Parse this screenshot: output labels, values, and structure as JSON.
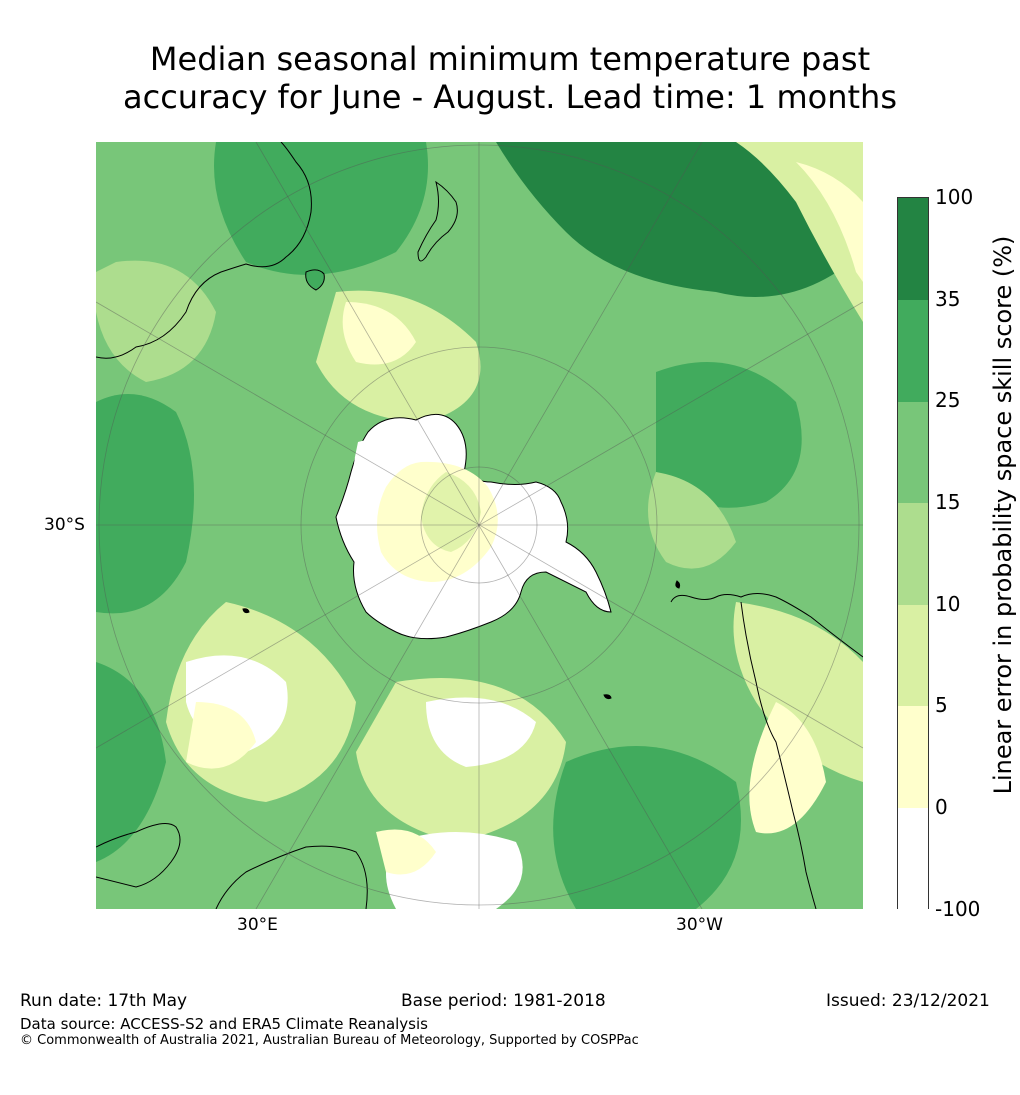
{
  "title_line1": "Median seasonal minimum temperature past",
  "title_line2": "accuracy for June - August. Lead time: 1 months",
  "map": {
    "projection": "south-polar-stereographic",
    "lat_label": "30°S",
    "lon_labels": [
      "30°E",
      "30°W"
    ]
  },
  "colorbar": {
    "label": "Linear error in probability space skill score (%)",
    "ticks": [
      "100",
      "35",
      "25",
      "15",
      "10",
      "5",
      "0",
      "-100"
    ],
    "bins": [
      {
        "range": "-100 to 0",
        "color": "#ffffff"
      },
      {
        "range": "0 to 5",
        "color": "#ffffcc"
      },
      {
        "range": "5 to 10",
        "color": "#d9f0a3"
      },
      {
        "range": "10 to 15",
        "color": "#addd8e"
      },
      {
        "range": "15 to 25",
        "color": "#78c679"
      },
      {
        "range": "25 to 35",
        "color": "#41ab5d"
      },
      {
        "range": "35 to 100",
        "color": "#238443"
      }
    ]
  },
  "footer": {
    "run_date": "Run date: 17th May",
    "base_period": "Base period: 1981-2018",
    "issued": "Issued: 23/12/2021",
    "data_source": "Data source: ACCESS-S2 and ERA5 Climate Reanalysis",
    "copyright": "© Commonwealth of Australia 2021, Australian Bureau of Meteorology, Supported by COSPPac"
  }
}
